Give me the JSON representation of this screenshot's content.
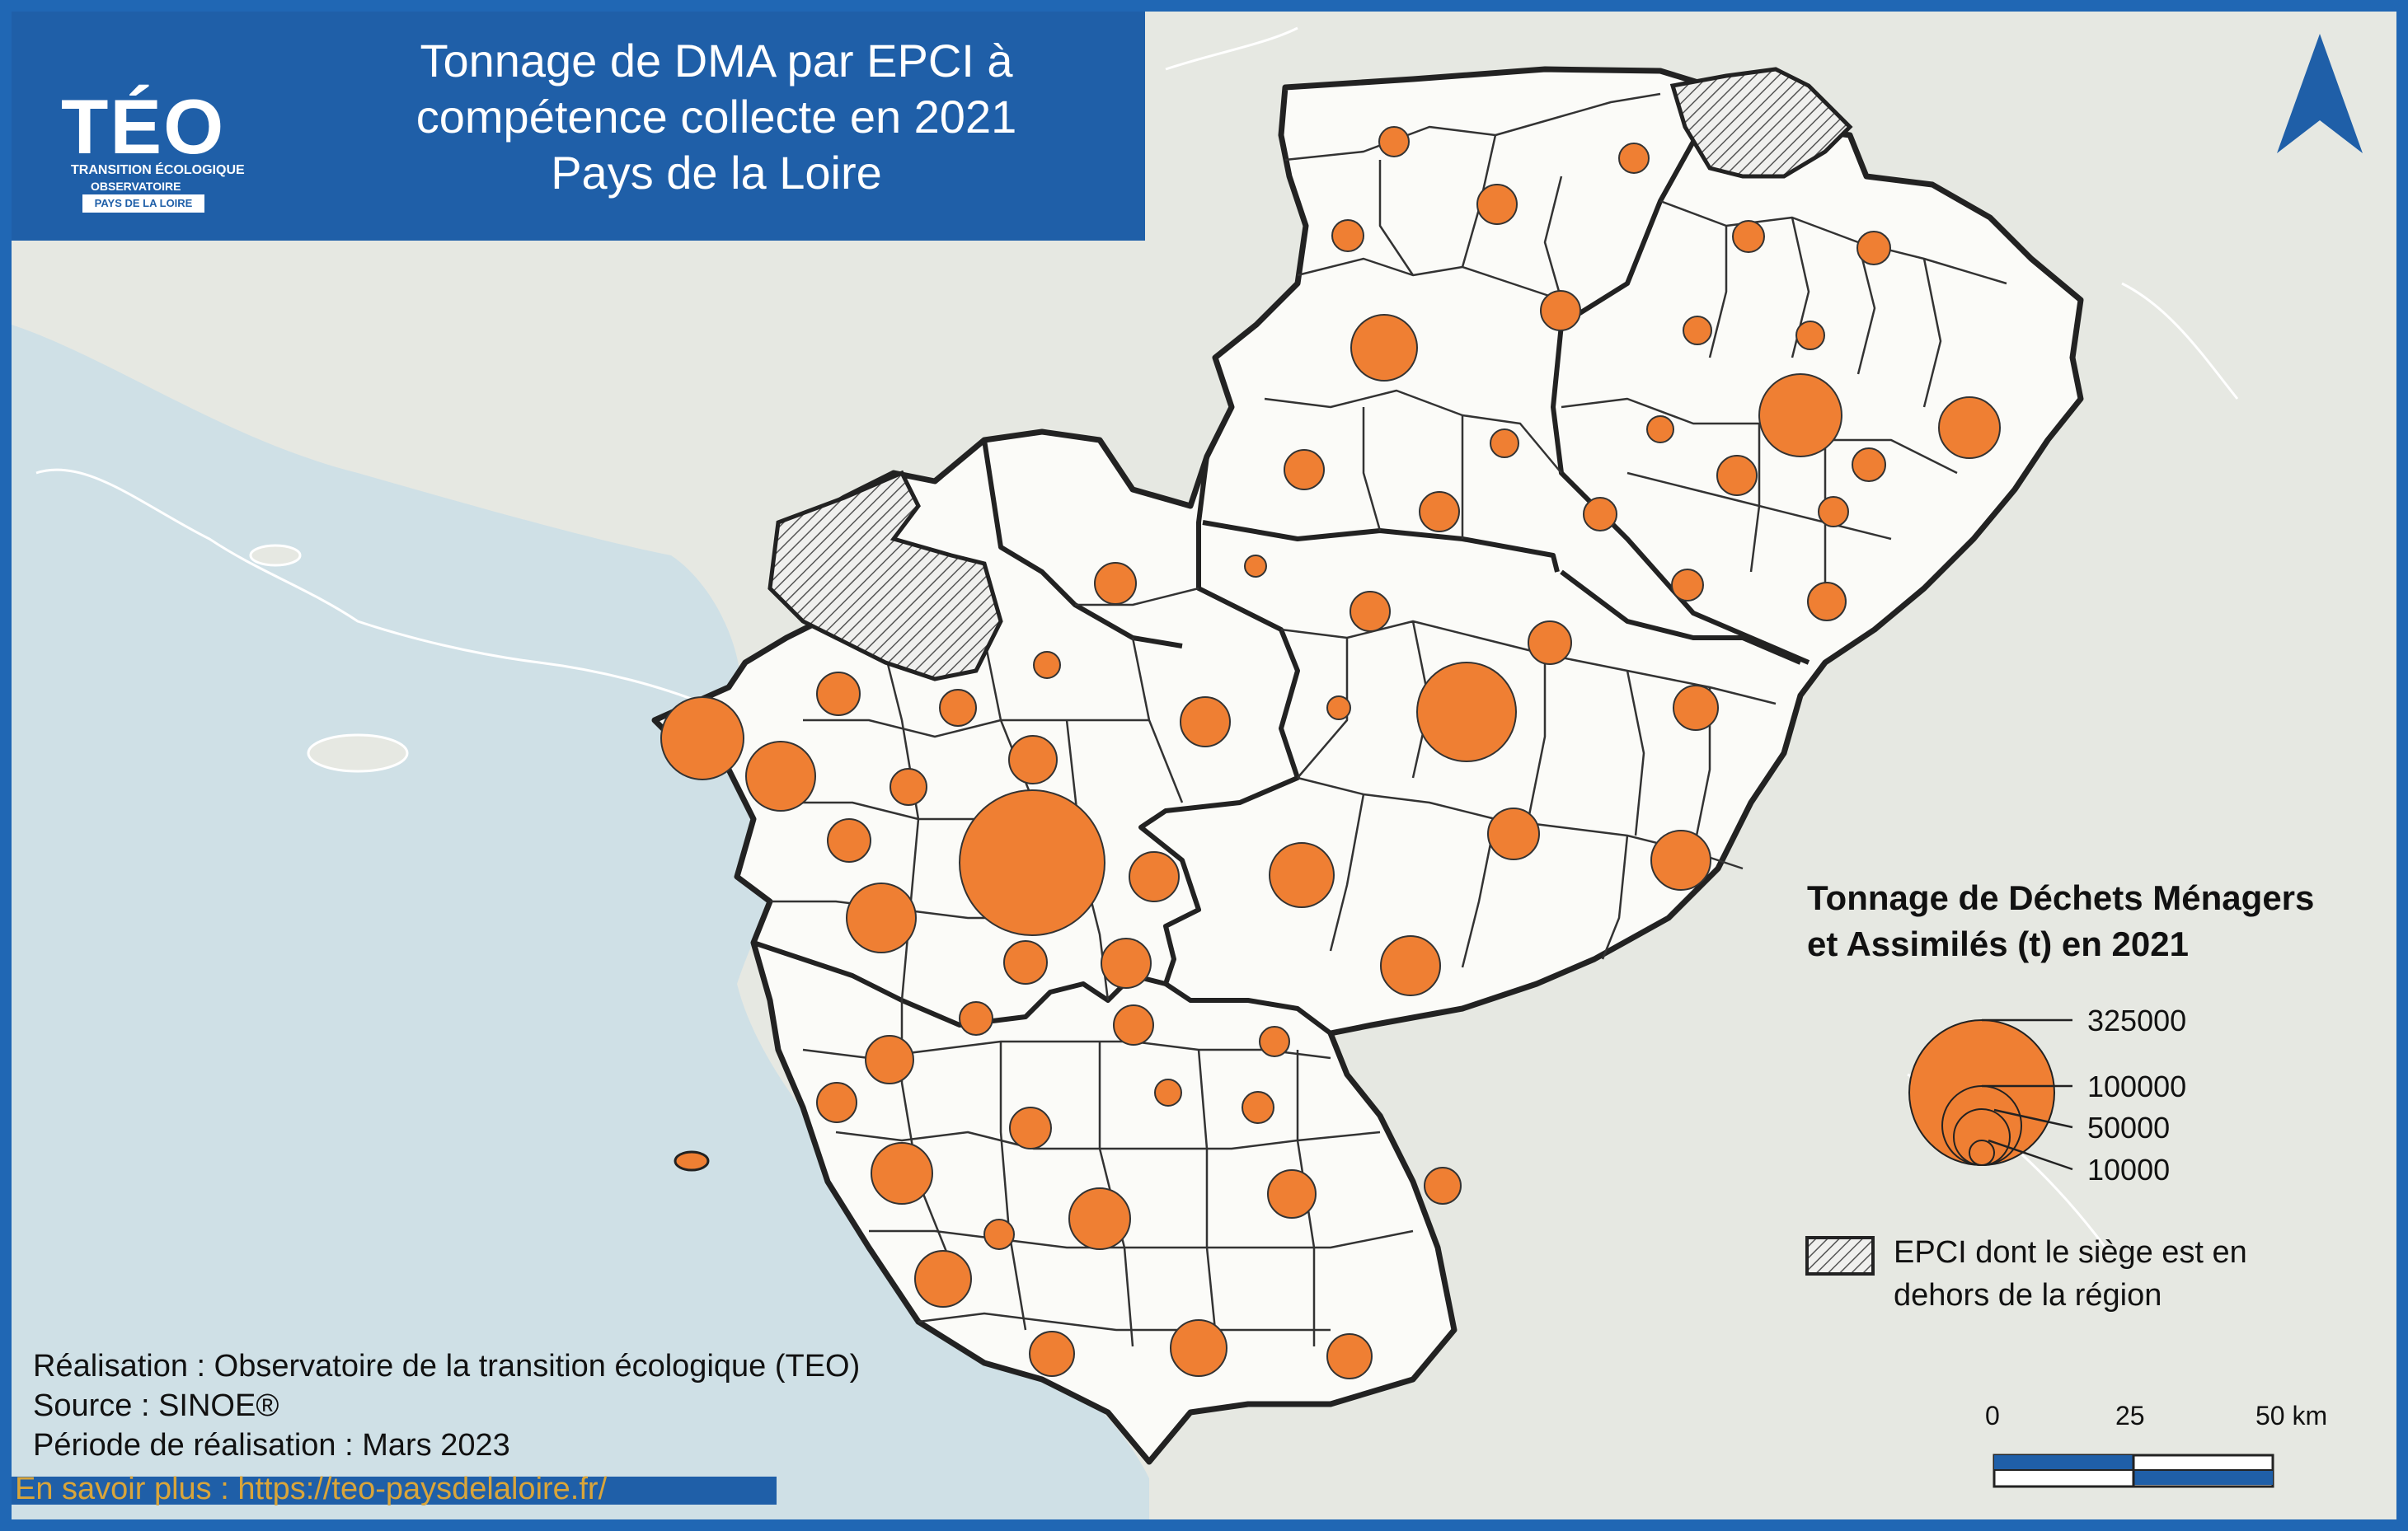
{
  "header": {
    "logo": "TÉO",
    "logo_subtitle_1": "TRANSITION ÉCOLOGIQUE",
    "logo_subtitle_2": "OBSERVATOIRE",
    "logo_region": "PAYS DE LA LOIRE",
    "title_lines": [
      "Tonnage de DMA par EPCI à",
      "compétence collecte en 2021",
      "Pays de la Loire"
    ]
  },
  "legend": {
    "title_lines": [
      "Tonnage de Déchets Ménagers",
      "et Assimilés (t) en 2021"
    ],
    "values": [
      "325000",
      "100000",
      "50000",
      "10000"
    ],
    "hatch_label_lines": [
      "EPCI dont le siège est en",
      "dehors de la région"
    ]
  },
  "scale": {
    "labels": [
      "0",
      "25",
      "50 km"
    ]
  },
  "credits": {
    "lines": [
      "Réalisation : Observatoire de la transition écologique (TEO)",
      "Source : SINOE®",
      "Période de réalisation : Mars 2023"
    ],
    "link": "En savoir plus : https://teo-paysdelaloire.fr/"
  },
  "colors": {
    "sea": "#cfe0e6",
    "land_outside": "#e6e8e2",
    "region": "#fbfbf8",
    "bubble": "#ef7f33",
    "header": "#1f5fa8"
  },
  "icons": {
    "north": "north-arrow-icon",
    "logo": "teo-logo-icon"
  }
}
